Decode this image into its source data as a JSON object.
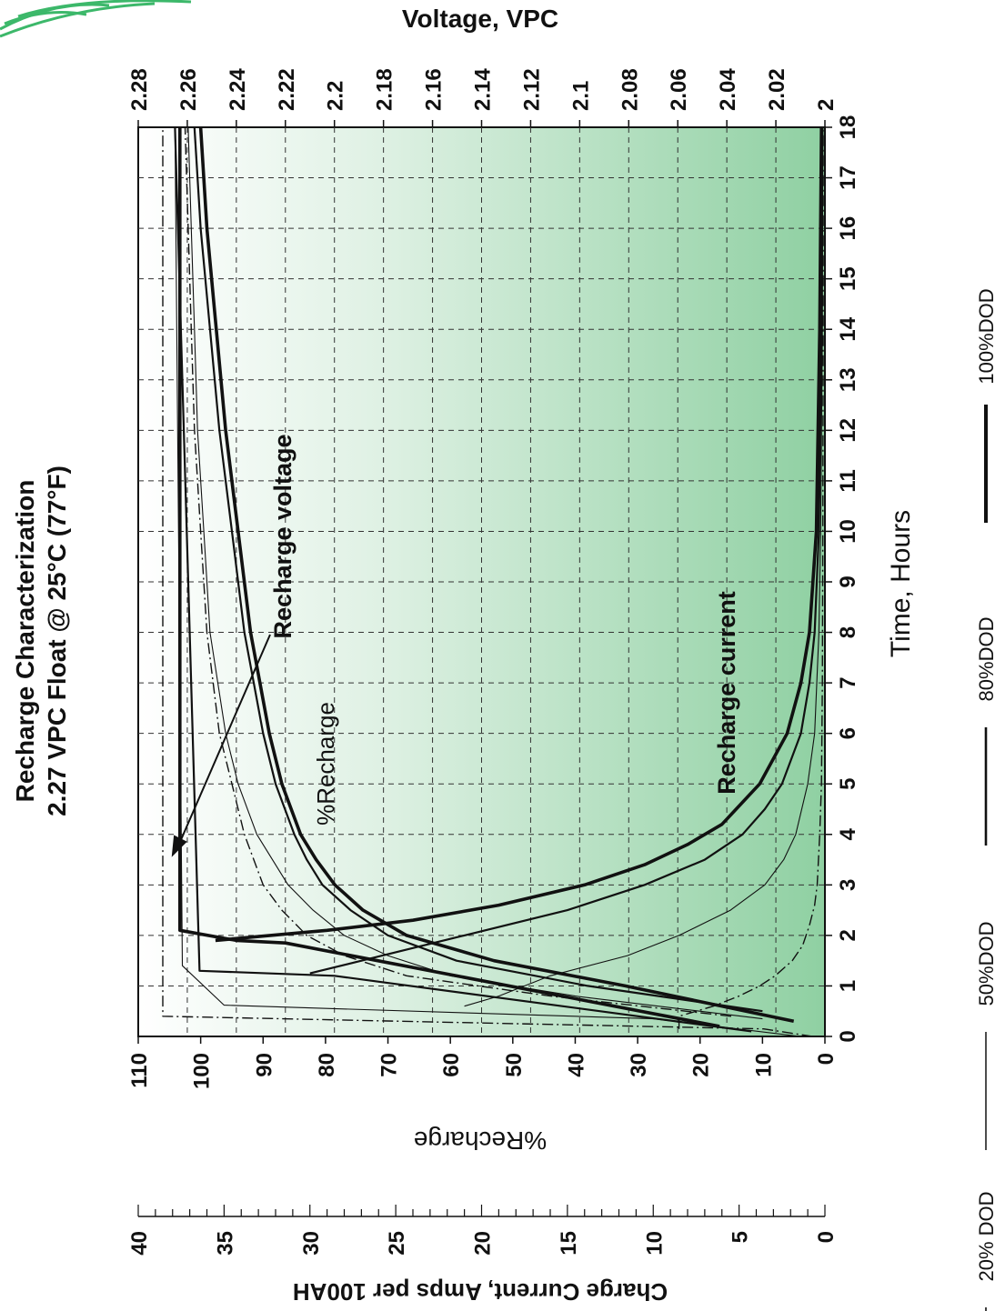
{
  "chart_data": {
    "type": "line",
    "orientation": "rotated-90-clockwise",
    "title": "Recharge Characterization",
    "subtitle": "2.27 VPC Float @ 25°C (77°F)",
    "x_axis": {
      "label": "Time, Hours",
      "range": [
        0,
        18
      ],
      "ticks": [
        0,
        1,
        2,
        3,
        4,
        5,
        6,
        7,
        8,
        9,
        10,
        11,
        12,
        13,
        14,
        15,
        16,
        17,
        18
      ],
      "tick_labels": [
        "0",
        "1",
        "2",
        "3",
        "4",
        "5",
        "6",
        "7",
        "8",
        "9",
        "10",
        "11",
        "12",
        "13",
        "14",
        "15",
        "16",
        "17",
        "18"
      ]
    },
    "y_axes": {
      "voltage": {
        "label": "Voltage, VPC",
        "range": [
          2.0,
          2.28
        ],
        "ticks": [
          2.0,
          2.02,
          2.04,
          2.06,
          2.08,
          2.1,
          2.12,
          2.14,
          2.16,
          2.18,
          2.2,
          2.22,
          2.24,
          2.26,
          2.28
        ],
        "tick_labels": [
          "2",
          "2.02",
          "2.04",
          "2.06",
          "2.08",
          "2.1",
          "2.12",
          "2.14",
          "2.16",
          "2.18",
          "2.2",
          "2.22",
          "2.24",
          "2.26",
          "2.28"
        ]
      },
      "recharge": {
        "label": "%Recharge",
        "range": [
          0,
          110
        ],
        "ticks": [
          0,
          10,
          20,
          30,
          40,
          50,
          60,
          70,
          80,
          90,
          100,
          110
        ],
        "tick_labels": [
          "0",
          "10",
          "20",
          "30",
          "40",
          "50",
          "60",
          "70",
          "80",
          "90",
          "100",
          "110"
        ]
      },
      "current": {
        "label": "Charge Current, Amps per 100AH",
        "range": [
          0,
          40
        ],
        "ticks": [
          0,
          5,
          10,
          15,
          20,
          25,
          30,
          35,
          40
        ],
        "tick_labels": [
          "0",
          "5",
          "10",
          "15",
          "20",
          "25",
          "30",
          "35",
          "40"
        ]
      }
    },
    "legend": [
      {
        "name": "20% DOD",
        "style": "dash-dot"
      },
      {
        "name": "50%DOD",
        "style": "thin"
      },
      {
        "name": "80%DOD",
        "style": "medium"
      },
      {
        "name": "100%DOD",
        "style": "thick"
      }
    ],
    "annotations": [
      "Recharge voltage",
      "%Recharge",
      "Recharge current"
    ],
    "series": [
      {
        "name": "20% DOD",
        "quantity": "voltage",
        "axis": "voltage",
        "x": [
          0,
          0.15,
          0.4,
          18
        ],
        "y": [
          2.005,
          2.025,
          2.27,
          2.27
        ]
      },
      {
        "name": "50%DOD",
        "quantity": "voltage",
        "axis": "voltage",
        "x": [
          0,
          0.35,
          0.62,
          1.4,
          18
        ],
        "y": [
          2.01,
          2.07,
          2.245,
          2.262,
          2.265
        ]
      },
      {
        "name": "80%DOD",
        "quantity": "voltage",
        "axis": "voltage",
        "x": [
          0.1,
          1.2,
          1.3,
          18
        ],
        "y": [
          2.03,
          2.2,
          2.255,
          2.265
        ]
      },
      {
        "name": "100%DOD",
        "quantity": "voltage",
        "axis": "voltage",
        "x": [
          0.2,
          1.85,
          1.9,
          2.1,
          18
        ],
        "y": [
          2.043,
          2.22,
          2.24,
          2.263,
          2.263
        ]
      },
      {
        "name": "20% DOD",
        "quantity": "recharge",
        "axis": "recharge",
        "x": [
          0.4,
          0.8,
          1.2,
          1.6,
          2,
          2.5,
          3,
          4,
          5,
          6,
          8,
          10,
          12,
          14,
          16,
          18
        ],
        "y": [
          15,
          44,
          67,
          77,
          83,
          87,
          90,
          93,
          95,
          97,
          99,
          100,
          101,
          101.5,
          102,
          102.5
        ]
      },
      {
        "name": "50%DOD",
        "quantity": "recharge",
        "axis": "recharge",
        "x": [
          0.35,
          0.8,
          1.2,
          1.6,
          2,
          2.5,
          3,
          4,
          5,
          6,
          8,
          10,
          12,
          14,
          16,
          18
        ],
        "y": [
          10,
          40,
          60,
          70,
          77,
          82,
          86,
          91,
          94,
          96,
          98.5,
          99.5,
          100.5,
          101,
          101.5,
          102
        ]
      },
      {
        "name": "80%DOD",
        "quantity": "recharge",
        "axis": "recharge",
        "x": [
          0.5,
          1,
          1.5,
          2,
          2.5,
          3,
          3.5,
          4,
          5,
          6,
          7,
          8,
          10,
          12,
          14,
          16,
          18
        ],
        "y": [
          10,
          38,
          59,
          70,
          76,
          80.5,
          83,
          85,
          88,
          90,
          91.5,
          93,
          95,
          97,
          98.5,
          100,
          101
        ]
      },
      {
        "name": "100%DOD",
        "quantity": "recharge",
        "axis": "recharge",
        "x": [
          0.3,
          1,
          1.5,
          2,
          2.5,
          3,
          3.5,
          4,
          5,
          6,
          7,
          8,
          10,
          12,
          14,
          16,
          18
        ],
        "y": [
          5,
          32,
          53,
          67,
          74,
          78.5,
          81.5,
          84,
          87,
          89,
          90.5,
          92,
          94,
          96,
          97.5,
          99,
          100
        ]
      },
      {
        "name": "20% DOD",
        "quantity": "current",
        "axis": "current",
        "x": [
          0.15,
          0.4,
          0.6,
          0.8,
          1,
          1.2,
          1.5,
          1.8,
          2.2,
          2.6,
          3,
          4,
          5,
          7,
          10,
          14,
          18
        ],
        "y": [
          8.5,
          8.5,
          6.5,
          5,
          3.8,
          2.9,
          1.9,
          1.3,
          0.9,
          0.6,
          0.45,
          0.3,
          0.2,
          0.15,
          0.12,
          0.1,
          0.1
        ]
      },
      {
        "name": "50%DOD",
        "quantity": "current",
        "axis": "current",
        "x": [
          0.6,
          0.8,
          1.2,
          1.6,
          2,
          2.5,
          3,
          3.5,
          4,
          5,
          6,
          8,
          10,
          14,
          18
        ],
        "y": [
          21,
          19,
          16,
          11.5,
          8.5,
          5.5,
          3.5,
          2.4,
          1.7,
          1.0,
          0.6,
          0.35,
          0.25,
          0.15,
          0.12
        ]
      },
      {
        "name": "80%DOD",
        "quantity": "current",
        "axis": "current",
        "x": [
          1.25,
          1.5,
          2,
          2.5,
          3,
          3.5,
          4,
          4.5,
          5,
          6,
          7,
          8,
          10,
          14,
          18
        ],
        "y": [
          30,
          27,
          21,
          15,
          10.5,
          7,
          4.8,
          3.5,
          2.5,
          1.4,
          0.9,
          0.6,
          0.35,
          0.2,
          0.15
        ]
      },
      {
        "name": "100%DOD",
        "quantity": "current",
        "axis": "current",
        "x": [
          1.9,
          2.1,
          2.3,
          2.6,
          3,
          3.4,
          3.8,
          4.2,
          5,
          6,
          7,
          8,
          10,
          14,
          18
        ],
        "y": [
          35.5,
          29,
          24,
          19,
          14,
          10.5,
          8,
          6,
          3.8,
          2.2,
          1.4,
          0.9,
          0.5,
          0.3,
          0.2
        ]
      }
    ],
    "grid": true,
    "colors": {
      "plot_top": "#ffffff",
      "plot_bottom": "#8fd0a2",
      "line": "#111111"
    }
  }
}
